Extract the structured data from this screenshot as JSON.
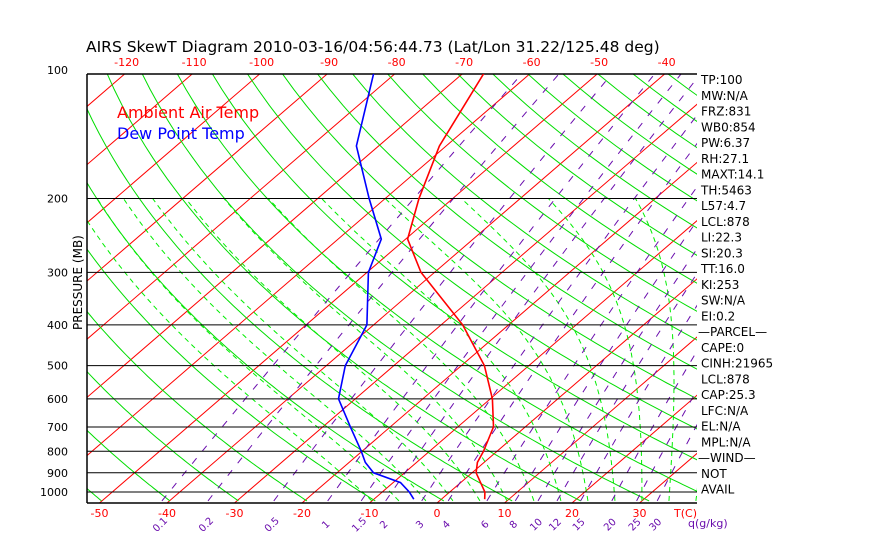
{
  "chart_data": {
    "type": "line",
    "title": "AIRS SkewT Diagram 2010-03-16/04:56:44.73 (Lat/Lon 31.22/125.48 deg)",
    "ylabel": "PRESSURE (MB)",
    "xlabel": "T(C)",
    "mixing_ratio_label": "q(g/kg)",
    "ylim_mb": [
      1050,
      100
    ],
    "pressure_ticks": [
      "100",
      "200",
      "300",
      "400",
      "500",
      "600",
      "700",
      "800",
      "900",
      "1000"
    ],
    "top_temp_ticks": [
      "-120",
      "-110",
      "-100",
      "-90",
      "-80",
      "-70",
      "-60",
      "-50",
      "-40"
    ],
    "bottom_temp_ticks": [
      "-50",
      "-40",
      "-30",
      "-20",
      "-10",
      "0",
      "10",
      "20",
      "30"
    ],
    "mixing_ratio_ticks": [
      "0.1",
      "0.2",
      "0.5",
      "1",
      "1.5",
      "2",
      "3",
      "4",
      "6",
      "8",
      "10",
      "12",
      "15",
      "20",
      "25",
      "30"
    ],
    "legend": [
      {
        "label": "Ambient Air Temp",
        "color": "#ff0000"
      },
      {
        "label": "Dew Point Temp",
        "color": "#0000ff"
      }
    ],
    "series": [
      {
        "name": "Ambient Air Temp",
        "color": "#ff0000",
        "pressure": [
          1040,
          1000,
          900,
          850,
          800,
          700,
          600,
          500,
          400,
          300,
          250,
          200,
          150,
          100
        ],
        "values": [
          6.4,
          5.2,
          0.6,
          -1.0,
          -2.0,
          -4.7,
          -9.7,
          -16.6,
          -26.8,
          -42.0,
          -49.7,
          -55.0,
          -61.0,
          -67.0
        ]
      },
      {
        "name": "Dew Point Temp",
        "color": "#0000ff",
        "pressure": [
          1040,
          1000,
          950,
          900,
          850,
          800,
          700,
          600,
          500,
          400,
          300,
          250,
          200,
          150,
          100
        ],
        "values": [
          -4.1,
          -6.0,
          -8.9,
          -14.6,
          -17.6,
          -20.1,
          -25.9,
          -32.5,
          -37.2,
          -41.0,
          -49.8,
          -53.6,
          -62.4,
          -73.3,
          -83.4
        ]
      }
    ]
  },
  "stats": [
    "TP:100",
    "MW:N/A",
    "FRZ:831",
    "WB0:854",
    "PW:6.37",
    "RH:27.1",
    "MAXT:14.1",
    "TH:5463",
    "L57:4.7",
    "LCL:878",
    "LI:22.3",
    "SI:20.3",
    "TT:16.0",
    "KI:253",
    "SW:N/A",
    "EI:0.2",
    "—PARCEL—",
    "CAPE:0",
    "CINH:21965",
    "LCL:878",
    "CAP:25.3",
    "LFC:N/A",
    "EL:N/A",
    "MPL:N/A",
    "—WIND—",
    "NOT",
    "AVAIL"
  ],
  "colors": {
    "isotherm": "#ff0000",
    "dry_adiabat": "#00dd00",
    "moist_adiabat": "#00ee00",
    "mixing_ratio": "#6a0dad",
    "frame": "#000000"
  }
}
